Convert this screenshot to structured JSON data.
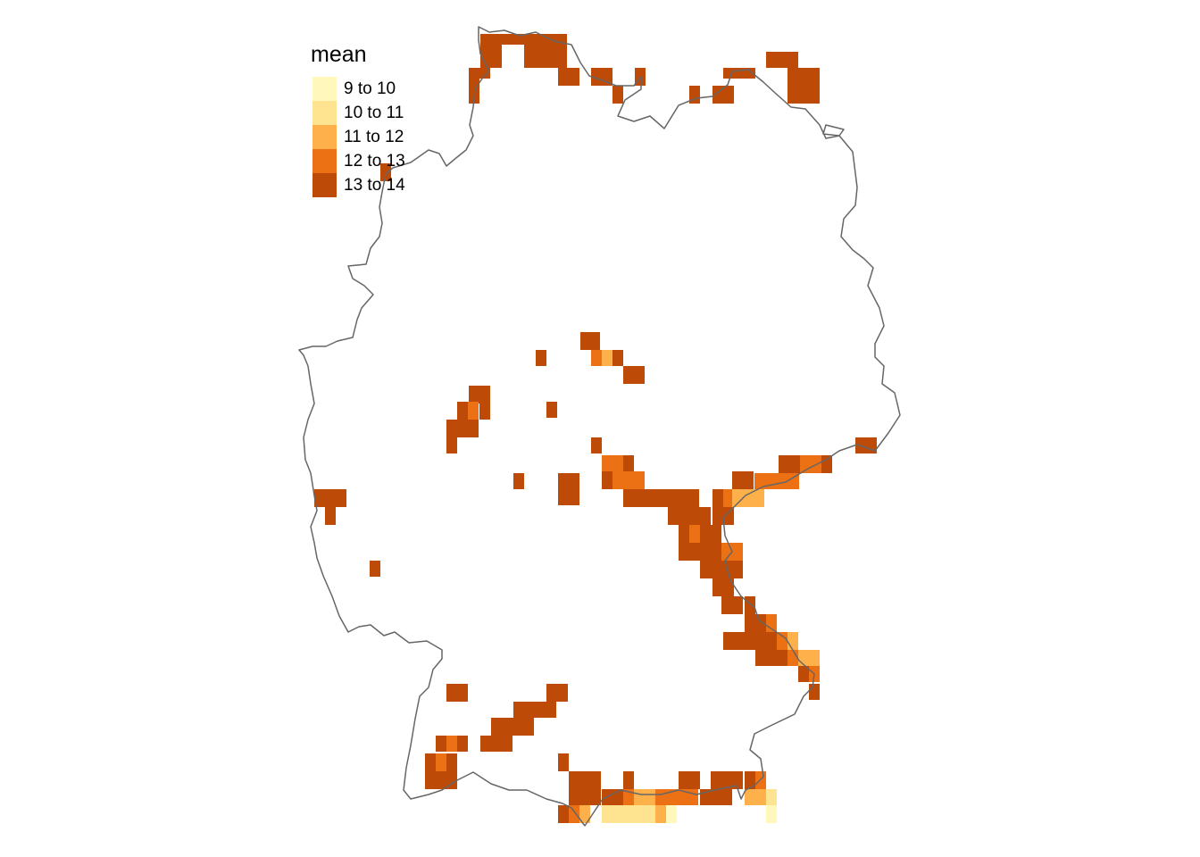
{
  "legend": {
    "title": "mean",
    "items": [
      {
        "label": "9 to 10",
        "color": "#fff7bc"
      },
      {
        "label": "10 to 11",
        "color": "#fee391"
      },
      {
        "label": "11 to 12",
        "color": "#feb14a"
      },
      {
        "label": "12 to 13",
        "color": "#ec7014"
      },
      {
        "label": "13 to 14",
        "color": "#bd4a06"
      }
    ]
  },
  "colors": {
    "border": "#666666",
    "background": "#ffffff"
  }
}
